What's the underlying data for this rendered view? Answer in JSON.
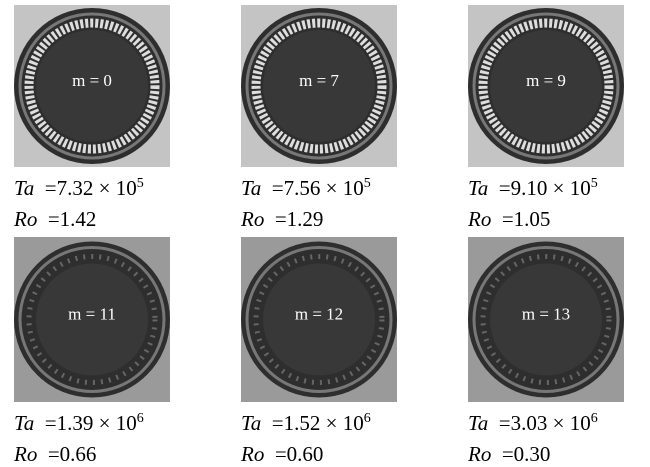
{
  "symbols": {
    "ta": "Ta",
    "ro": "Ro",
    "eq": "=",
    "times": "× 10"
  },
  "panels": [
    {
      "label": "m = 0",
      "ta_mantissa": "7.32",
      "ta_exponent": "5",
      "ro": "1.42"
    },
    {
      "label": "m = 7",
      "ta_mantissa": "7.56",
      "ta_exponent": "5",
      "ro": "1.29"
    },
    {
      "label": "m = 9",
      "ta_mantissa": "9.10",
      "ta_exponent": "5",
      "ro": "1.05"
    },
    {
      "label": "m = 11",
      "ta_mantissa": "1.39",
      "ta_exponent": "6",
      "ro": "0.66"
    },
    {
      "label": "m = 12",
      "ta_mantissa": "1.52",
      "ta_exponent": "6",
      "ro": "0.60"
    },
    {
      "label": "m = 13",
      "ta_mantissa": "3.03",
      "ta_exponent": "6",
      "ro": "0.30"
    }
  ]
}
